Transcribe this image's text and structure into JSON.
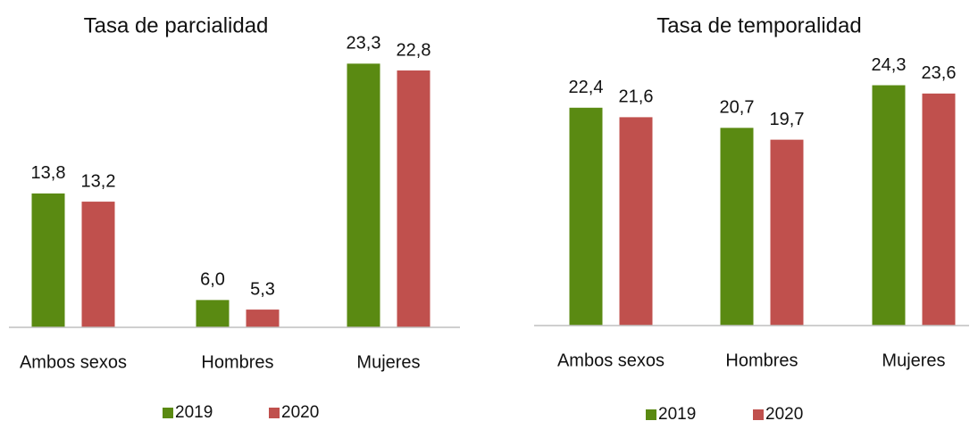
{
  "chart_data": [
    {
      "type": "bar",
      "title": "Tasa de parcialidad",
      "categories": [
        "Ambos sexos",
        "Hombres",
        "Mujeres"
      ],
      "ylim": [
        4,
        26
      ],
      "series": [
        {
          "name": "2019",
          "color": "#5a8a12",
          "values": [
            13.8,
            6.0,
            23.3
          ],
          "value_labels": [
            "13,8",
            "6,0",
            "23,3"
          ]
        },
        {
          "name": "2020",
          "color": "#c0504d",
          "values": [
            13.2,
            5.3,
            22.8
          ],
          "value_labels": [
            "13,2",
            "5,3",
            "22,8"
          ]
        }
      ]
    },
    {
      "type": "bar",
      "title": "Tasa de temporalidad",
      "categories": [
        "Ambos sexos",
        "Hombres",
        "Mujeres"
      ],
      "ylim": [
        4,
        26
      ],
      "series": [
        {
          "name": "2019",
          "color": "#5a8a12",
          "values": [
            22.4,
            20.7,
            24.3
          ],
          "value_labels": [
            "22,4",
            "20,7",
            "24,3"
          ]
        },
        {
          "name": "2020",
          "color": "#c0504d",
          "values": [
            21.6,
            19.7,
            23.6
          ],
          "value_labels": [
            "21,6",
            "19,7",
            "23,6"
          ]
        }
      ]
    }
  ]
}
